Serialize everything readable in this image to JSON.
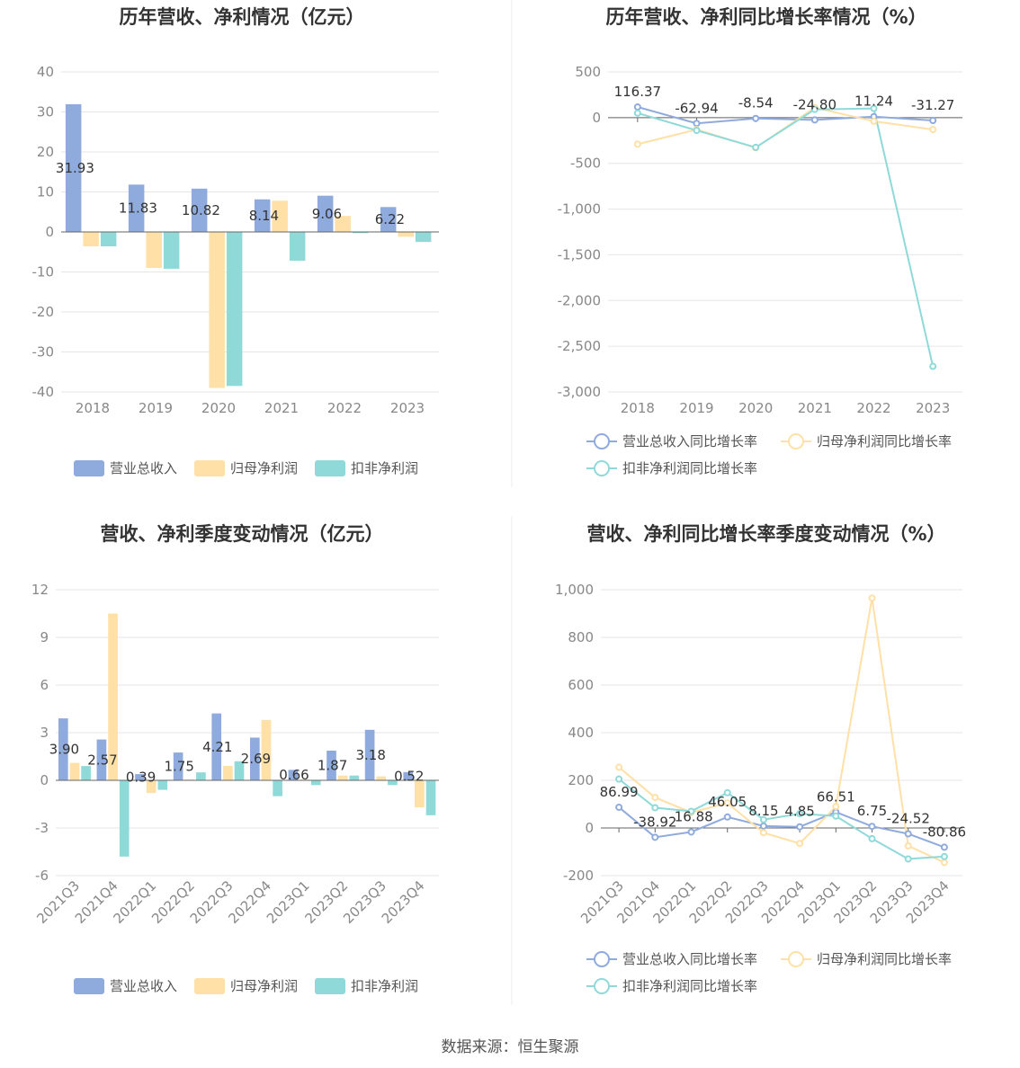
{
  "source_text": "数据来源：恒生聚源",
  "colors": {
    "revenue": "#8faadc",
    "net_profit": "#ffe0a6",
    "deducted_profit": "#8fd9d9",
    "grid": "#e6e6e6",
    "axis": "#666666"
  },
  "chart_data": [
    {
      "type": "bar",
      "title": "历年营收、净利情况（亿元）",
      "categories": [
        "2018",
        "2019",
        "2020",
        "2021",
        "2022",
        "2023"
      ],
      "ylim": [
        -40,
        40
      ],
      "yticks": [
        40,
        30,
        20,
        10,
        0,
        -10,
        -20,
        -30,
        -40
      ],
      "series": [
        {
          "name": "营业总收入",
          "color": "#8faadc",
          "values": [
            31.93,
            11.83,
            10.82,
            8.14,
            9.06,
            6.22
          ],
          "labels": [
            "31.93",
            "11.83",
            "10.82",
            "8.14",
            "9.06",
            "6.22"
          ]
        },
        {
          "name": "归母净利润",
          "color": "#ffe0a6",
          "values": [
            -3.6,
            -9.0,
            -39.0,
            7.8,
            4.0,
            -1.2
          ]
        },
        {
          "name": "扣非净利润",
          "color": "#8fd9d9",
          "values": [
            -3.6,
            -9.2,
            -38.5,
            -7.2,
            -0.3,
            -2.5
          ]
        }
      ],
      "legend": "bottom"
    },
    {
      "type": "line",
      "title": "历年营收、净利同比增长率情况（%）",
      "categories": [
        "2018",
        "2019",
        "2020",
        "2021",
        "2022",
        "2023"
      ],
      "ylim": [
        -3000,
        500
      ],
      "yticks": [
        500,
        0,
        -500,
        -1000,
        -1500,
        -2000,
        -2500,
        -3000
      ],
      "ytick_labels": [
        "500",
        "0",
        "-500",
        "-1,000",
        "-1,500",
        "-2,000",
        "-2,500",
        "-3,000"
      ],
      "series": [
        {
          "name": "营业总收入同比增长率",
          "color": "#8faadc",
          "values": [
            116.37,
            -62.94,
            -8.54,
            -24.8,
            11.24,
            -31.27
          ],
          "labels": [
            "116.37",
            "-62.94",
            "-8.54",
            "-24.80",
            "11.24",
            "-31.27"
          ]
        },
        {
          "name": "归母净利润同比增长率",
          "color": "#ffe0a6",
          "values": [
            -290,
            -130,
            -330,
            110,
            -40,
            -130
          ]
        },
        {
          "name": "扣非净利润同比增长率",
          "color": "#8fd9d9",
          "values": [
            50,
            -140,
            -325,
            90,
            100,
            -2720
          ]
        }
      ],
      "legend": "bottom"
    },
    {
      "type": "bar",
      "title": "营收、净利季度变动情况（亿元）",
      "categories": [
        "2021Q3",
        "2021Q4",
        "2022Q1",
        "2022Q2",
        "2022Q3",
        "2022Q4",
        "2023Q1",
        "2023Q2",
        "2023Q3",
        "2023Q4"
      ],
      "ylim": [
        -6,
        12
      ],
      "yticks": [
        12,
        9,
        6,
        3,
        0,
        -3,
        -6
      ],
      "series": [
        {
          "name": "营业总收入",
          "color": "#8faadc",
          "values": [
            3.9,
            2.57,
            0.39,
            1.75,
            4.21,
            2.69,
            0.66,
            1.87,
            3.18,
            0.52
          ],
          "labels": [
            "3.90",
            "2.57",
            "0.39",
            "1.75",
            "4.21",
            "2.69",
            "0.66",
            "1.87",
            "3.18",
            "0.52"
          ]
        },
        {
          "name": "归母净利润",
          "color": "#ffe0a6",
          "values": [
            1.1,
            10.5,
            -0.8,
            0.05,
            0.9,
            3.8,
            0.05,
            0.3,
            0.25,
            -1.7
          ]
        },
        {
          "name": "扣非净利润",
          "color": "#8fd9d9",
          "values": [
            0.9,
            -4.8,
            -0.6,
            0.5,
            1.2,
            -1.0,
            -0.3,
            0.3,
            -0.3,
            -2.2
          ]
        }
      ],
      "legend": "bottom"
    },
    {
      "type": "line",
      "title": "营收、净利同比增长率季度变动情况（%）",
      "categories": [
        "2021Q3",
        "2021Q4",
        "2022Q1",
        "2022Q2",
        "2022Q3",
        "2022Q4",
        "2023Q1",
        "2023Q2",
        "2023Q3",
        "2023Q4"
      ],
      "ylim": [
        -200,
        1000
      ],
      "yticks": [
        1000,
        800,
        600,
        400,
        200,
        0,
        -200
      ],
      "ytick_labels": [
        "1,000",
        "800",
        "600",
        "400",
        "200",
        "0",
        "-200"
      ],
      "series": [
        {
          "name": "营业总收入同比增长率",
          "color": "#8faadc",
          "values": [
            86.99,
            -38.92,
            -16.88,
            46.05,
            8.15,
            4.85,
            66.51,
            6.75,
            -24.52,
            -80.86
          ],
          "labels": [
            "86.99",
            "-38.92",
            "-16.88",
            "46.05",
            "8.15",
            "4.85",
            "66.51",
            "6.75",
            "-24.52",
            "-80.86"
          ]
        },
        {
          "name": "归母净利润同比增长率",
          "color": "#ffe0a6",
          "values": [
            255,
            128,
            65,
            105,
            -20,
            -65,
            90,
            965,
            -75,
            -145
          ]
        },
        {
          "name": "扣非净利润同比增长率",
          "color": "#8fd9d9",
          "values": [
            205,
            85,
            70,
            148,
            35,
            60,
            50,
            -45,
            -130,
            -120
          ]
        }
      ],
      "legend": "bottom"
    }
  ]
}
